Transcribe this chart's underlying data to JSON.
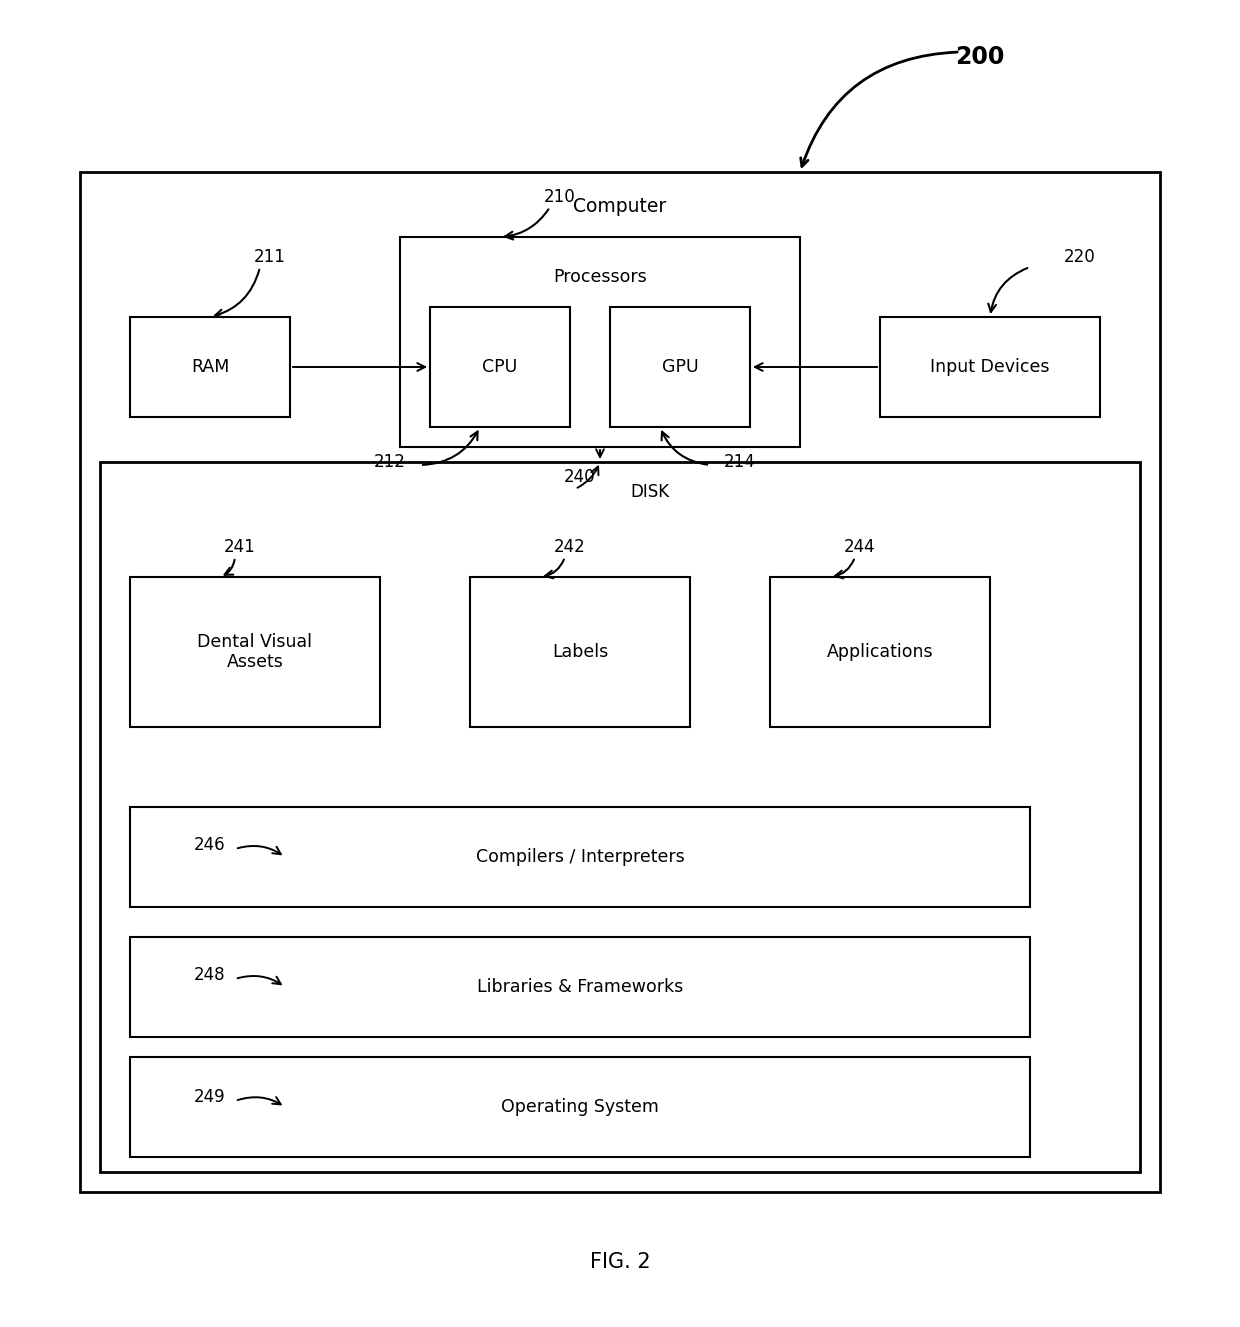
{
  "bg_color": "#ffffff",
  "fig_caption": "FIG. 2",
  "computer_label": "Computer",
  "labels": {
    "processors": "Processors",
    "cpu": "CPU",
    "gpu": "GPU",
    "ram": "RAM",
    "input_devices": "Input Devices",
    "dva": "Dental Visual\nAssets",
    "labels_lbl": "Labels",
    "applications": "Applications",
    "compilers": "Compilers / Interpreters",
    "libraries": "Libraries & Frameworks",
    "os": "Operating System",
    "disk": "DISK",
    "n200": "200",
    "n210": "210",
    "n211": "211",
    "n212": "212",
    "n214": "214",
    "n220": "220",
    "n240": "240",
    "n241": "241",
    "n242": "242",
    "n244": "244",
    "n246": "246",
    "n248": "248",
    "n249": "249"
  },
  "layout": {
    "fig_w": 12.4,
    "fig_h": 13.27,
    "dpi": 100
  }
}
